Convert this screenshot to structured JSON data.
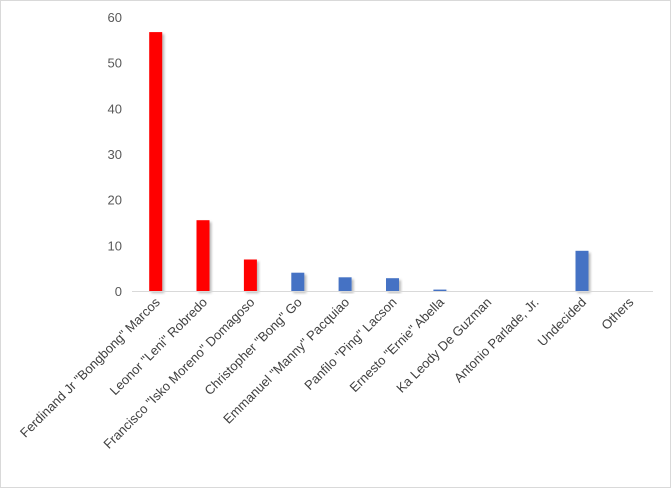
{
  "chart_data": {
    "type": "bar",
    "title": "",
    "xlabel": "",
    "ylabel": "",
    "ylim": [
      0,
      60
    ],
    "yticks": [
      0,
      10,
      20,
      30,
      40,
      50,
      60
    ],
    "grid": false,
    "legend": "none",
    "categories": [
      "Ferdinand Jr \"Bongbong\" Marcos",
      "Leonor \"Leni\" Robredo",
      "Francisco \"Isko Moreno\" Domagoso",
      "Christopher \"Bong\" Go",
      "Emmanuel \"Manny\" Pacquiao",
      "Panfilo \"Ping\" Lacson",
      "Ernesto \"Ernie\" Abella",
      "Ka Leody De Guzman",
      "Antonio Parlade, Jr.",
      "Undecided",
      "Others"
    ],
    "values": [
      56.7,
      15.5,
      6.9,
      4.0,
      3.0,
      2.8,
      0.3,
      0,
      0,
      8.8,
      0
    ],
    "colors": [
      "#ff0000",
      "#ff0000",
      "#ff0000",
      "#4472c4",
      "#4472c4",
      "#4472c4",
      "#4472c4",
      "#4472c4",
      "#4472c4",
      "#4472c4",
      "#4472c4"
    ],
    "axis_color": "#d9d9d9"
  }
}
